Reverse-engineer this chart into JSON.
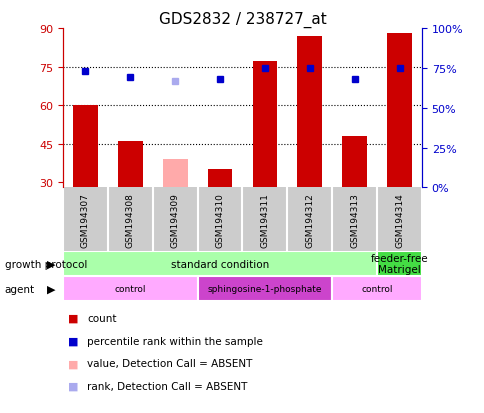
{
  "title": "GDS2832 / 238727_at",
  "samples": [
    "GSM194307",
    "GSM194308",
    "GSM194309",
    "GSM194310",
    "GSM194311",
    "GSM194312",
    "GSM194313",
    "GSM194314"
  ],
  "bar_values": [
    60,
    46,
    null,
    35,
    77,
    87,
    48,
    88
  ],
  "bar_absent": [
    null,
    null,
    39,
    null,
    null,
    null,
    null,
    null
  ],
  "rank_values": [
    73,
    69,
    null,
    68,
    75,
    75,
    68,
    75
  ],
  "rank_absent": [
    null,
    null,
    67,
    null,
    null,
    null,
    null,
    null
  ],
  "ylim_left": [
    28,
    90
  ],
  "ylim_right": [
    0,
    100
  ],
  "yticks_left": [
    30,
    45,
    60,
    75,
    90
  ],
  "yticks_right": [
    0,
    25,
    50,
    75,
    100
  ],
  "ytick_labels_right": [
    "0%",
    "25%",
    "50%",
    "75%",
    "100%"
  ],
  "grid_values": [
    45,
    60,
    75
  ],
  "bar_color": "#cc0000",
  "bar_absent_color": "#ffaaaa",
  "rank_color": "#0000cc",
  "rank_absent_color": "#aaaaee",
  "growth_protocol": [
    {
      "label": "standard condition",
      "start": 0,
      "end": 7,
      "color": "#aaffaa"
    },
    {
      "label": "feeder-free\nMatrigel",
      "start": 7,
      "end": 8,
      "color": "#44dd44"
    }
  ],
  "agent": [
    {
      "label": "control",
      "start": 0,
      "end": 3,
      "color": "#ffaaff"
    },
    {
      "label": "sphingosine-1-phosphate",
      "start": 3,
      "end": 6,
      "color": "#cc44cc"
    },
    {
      "label": "control",
      "start": 6,
      "end": 8,
      "color": "#ffaaff"
    }
  ],
  "legend_items": [
    {
      "label": "count",
      "color": "#cc0000"
    },
    {
      "label": "percentile rank within the sample",
      "color": "#0000cc"
    },
    {
      "label": "value, Detection Call = ABSENT",
      "color": "#ffaaaa"
    },
    {
      "label": "rank, Detection Call = ABSENT",
      "color": "#aaaaee"
    }
  ]
}
